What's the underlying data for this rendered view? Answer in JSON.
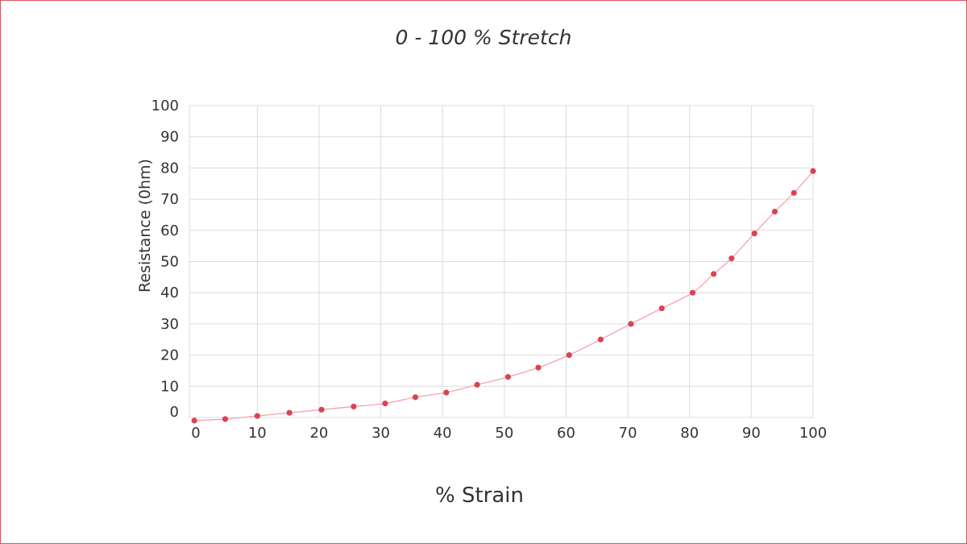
{
  "chart_data": {
    "type": "line",
    "title": "0 - 100 % Stretch",
    "xlabel": "% Strain",
    "ylabel": "Resistance (0hm)",
    "xlim": [
      -1,
      100
    ],
    "ylim": [
      0,
      100
    ],
    "x_ticks": [
      "0",
      "10",
      "20",
      "30",
      "40",
      "50",
      "60",
      "70",
      "80",
      "90",
      "100"
    ],
    "y_ticks": [
      "0",
      "10",
      "20",
      "30",
      "40",
      "50",
      "60",
      "70",
      "80",
      "90",
      "100"
    ],
    "grid": true,
    "legend": "none",
    "colors": {
      "line": "#f4a3ad",
      "marker": "#d94452",
      "grid": "#dcdcdc",
      "frame": "#d9535f"
    },
    "series": [
      {
        "x": [
          -0.2,
          4.8,
          10,
          15.2,
          20.4,
          25.6,
          30.7,
          35.6,
          40.6,
          45.6,
          50.6,
          55.5,
          60.5,
          65.6,
          70.5,
          75.5,
          80.5,
          83.9,
          86.8,
          90.5,
          93.8,
          96.9,
          100
        ],
        "y": [
          -1,
          -0.5,
          0.5,
          1.5,
          2.5,
          3.5,
          4.5,
          6.5,
          8,
          10.5,
          13,
          16,
          20,
          25,
          30,
          35,
          40,
          46,
          51,
          59,
          66,
          72,
          79
        ]
      }
    ]
  }
}
